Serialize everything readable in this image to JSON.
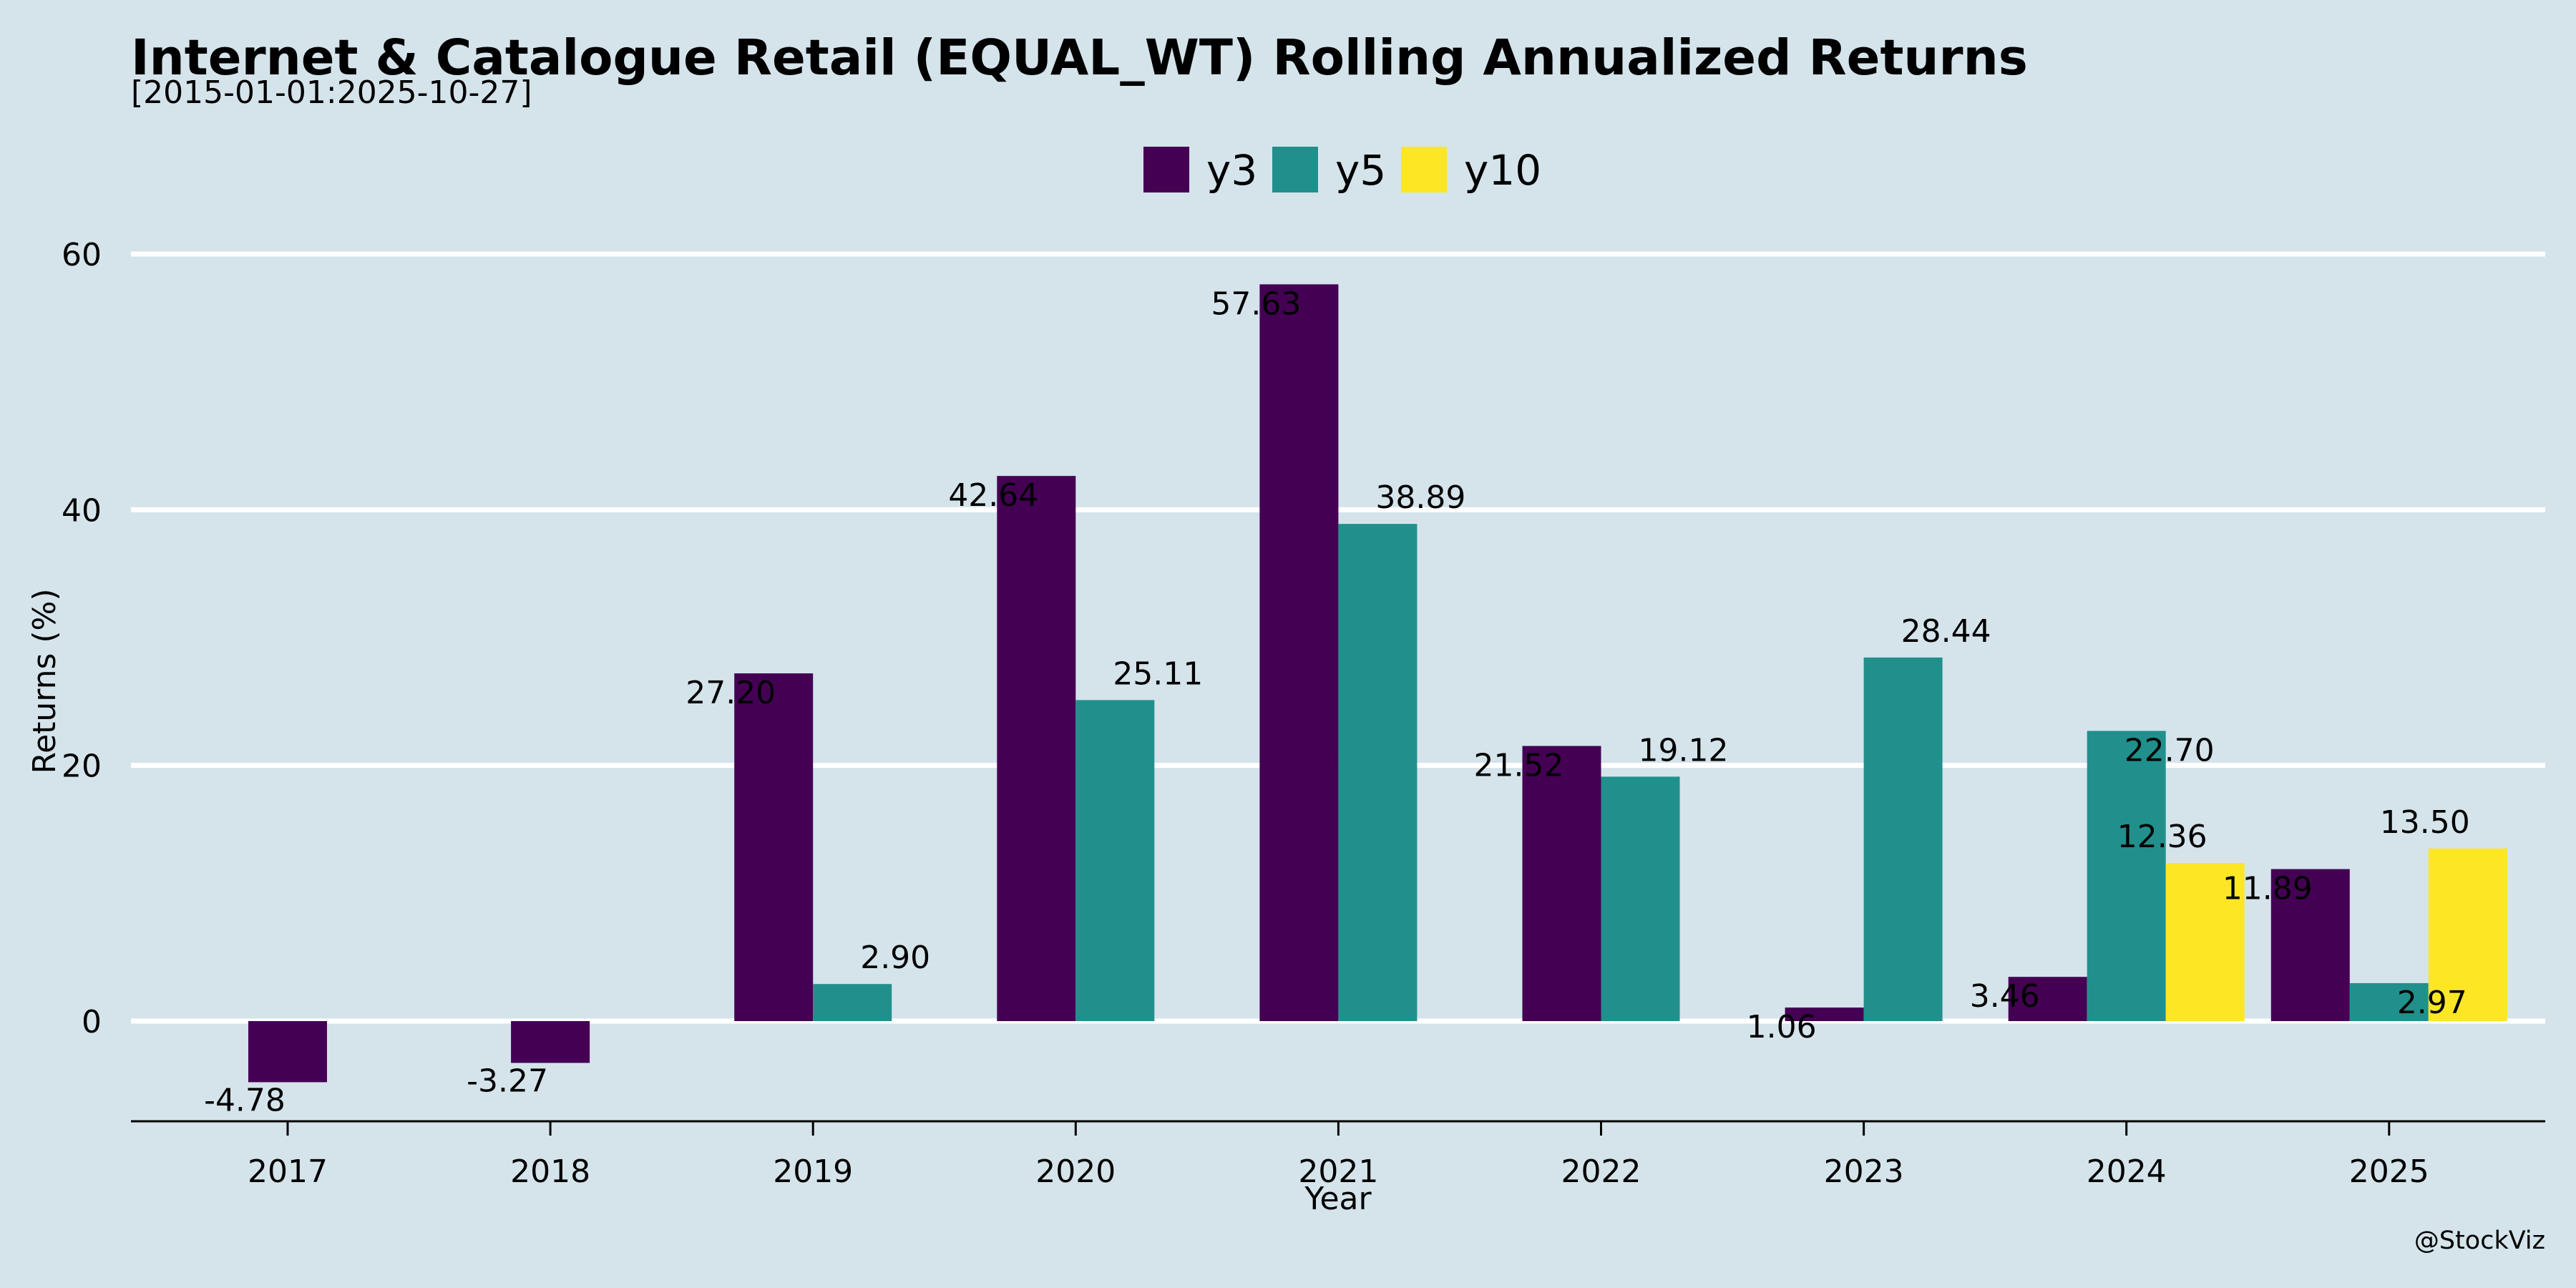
{
  "chart_data": {
    "type": "bar",
    "title": "Internet & Catalogue Retail (EQUAL_WT) Rolling Annualized Returns",
    "subtitle": "[2015-01-01:2025-10-27]",
    "xlabel": "Year",
    "ylabel": "Returns (%)",
    "categories": [
      "2017",
      "2018",
      "2019",
      "2020",
      "2021",
      "2022",
      "2023",
      "2024",
      "2025"
    ],
    "series": [
      {
        "name": "y3",
        "color": "#440154",
        "values": [
          -4.78,
          -3.27,
          27.2,
          42.64,
          57.63,
          21.52,
          1.06,
          3.46,
          11.89
        ]
      },
      {
        "name": "y5",
        "color": "#21908c",
        "values": [
          null,
          null,
          2.9,
          25.11,
          38.89,
          19.12,
          28.44,
          22.7,
          2.97
        ]
      },
      {
        "name": "y10",
        "color": "#fde725",
        "values": [
          null,
          null,
          null,
          null,
          null,
          null,
          null,
          12.36,
          13.5
        ]
      }
    ],
    "yticks": [
      0,
      20,
      40,
      60
    ],
    "ylim": [
      -7.8,
      60
    ],
    "grid": "horizontal",
    "legend_position": "top-center",
    "watermark": "@StockViz",
    "background": "#d5e4eb"
  }
}
